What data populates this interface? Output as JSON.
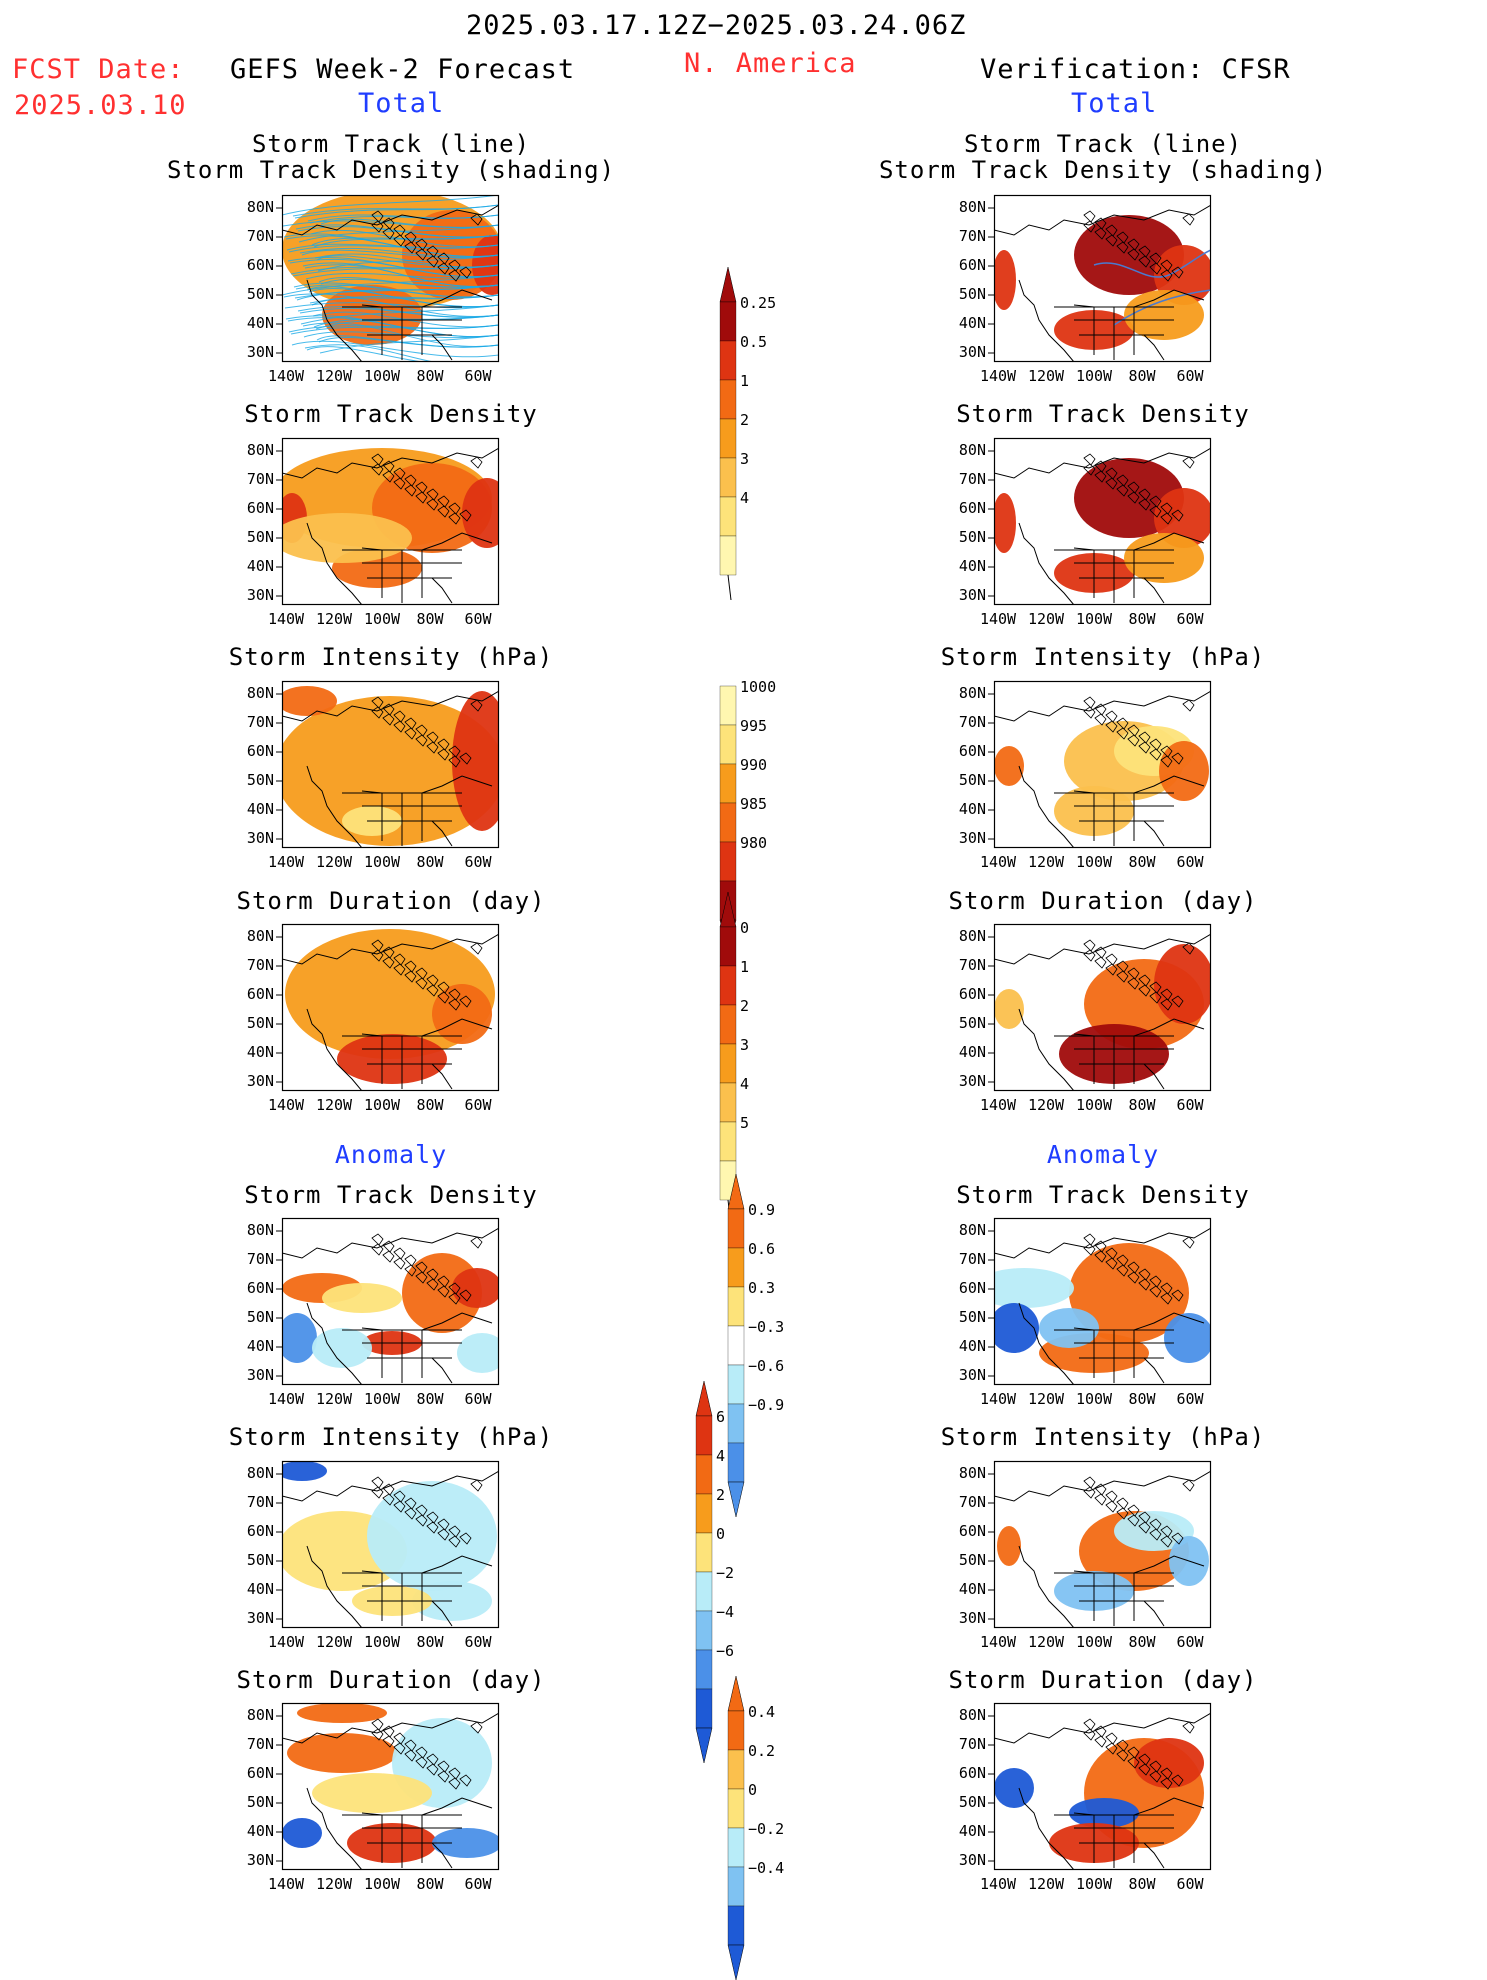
{
  "header": {
    "period": "2025.03.17.12Z−2025.03.24.06Z",
    "fcst_label": "FCST Date:",
    "fcst_date": "2025.03.10",
    "model_title": "GEFS Week-2 Forecast",
    "region": "N. America",
    "verification_title": "Verification: CFSR",
    "total_label": "Total",
    "anomaly_label": "Anomaly"
  },
  "axes": {
    "lat_ticks": [
      "80N",
      "70N",
      "60N",
      "50N",
      "40N",
      "30N"
    ],
    "lon_ticks": [
      "140W",
      "120W",
      "100W",
      "80W",
      "60W"
    ]
  },
  "panel_titles": {
    "track": [
      "Storm Track (line)",
      "Storm Track Density (shading)"
    ],
    "density": "Storm Track Density",
    "intensity": "Storm Intensity (hPa)",
    "duration": "Storm Duration (day)"
  },
  "colors": {
    "c0": "#fff7b0",
    "c1": "#fde37a",
    "c2": "#fbc04d",
    "c3": "#f79c1c",
    "c4": "#f26a14",
    "c5": "#de3412",
    "c6": "#a00b0b",
    "n1": "#b8ecf8",
    "n2": "#7fc2f2",
    "n3": "#4b90e8",
    "n4": "#1e5ad6",
    "track": "#19a9e6"
  },
  "colorbars": {
    "density": [
      "0.25",
      "0.5",
      "1",
      "2",
      "3",
      "4"
    ],
    "intensity": [
      "1000",
      "995",
      "990",
      "985",
      "980"
    ],
    "duration": [
      "0",
      "1",
      "2",
      "3",
      "4",
      "5"
    ],
    "density_anom": [
      "0.9",
      "0.6",
      "0.3",
      "−0.3",
      "−0.6",
      "−0.9"
    ],
    "intensity_anom": [
      "6",
      "4",
      "2",
      "0",
      "−2",
      "−4",
      "−6"
    ],
    "duration_anom": [
      "0.4",
      "0.2",
      "0",
      "−0.2",
      "−0.4"
    ]
  }
}
